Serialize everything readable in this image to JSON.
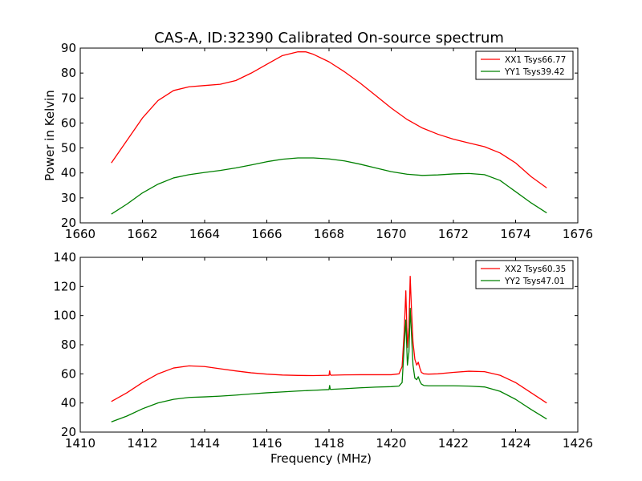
{
  "figure_title": "CAS-A, ID:32390 Calibrated On-source spectrum",
  "colors": {
    "xx": "#ff0000",
    "yy": "#008000"
  },
  "chart_data": [
    {
      "type": "line",
      "title": "CAS-A, ID:32390 Calibrated On-source spectrum",
      "xlabel": "",
      "ylabel": "Power in Kelvin",
      "xlim": [
        1660,
        1676
      ],
      "ylim": [
        20,
        90
      ],
      "xticks": [
        1660,
        1662,
        1664,
        1666,
        1668,
        1670,
        1672,
        1674,
        1676
      ],
      "yticks": [
        20,
        30,
        40,
        50,
        60,
        70,
        80,
        90
      ],
      "grid": false,
      "legend": "top-right",
      "series": [
        {
          "name": "XX1 Tsys66.77",
          "color": "#ff0000",
          "x": [
            1661.0,
            1661.5,
            1662.0,
            1662.5,
            1663.0,
            1663.5,
            1664.0,
            1664.5,
            1665.0,
            1665.5,
            1666.0,
            1666.5,
            1667.0,
            1667.25,
            1667.5,
            1668.0,
            1668.5,
            1669.0,
            1669.5,
            1670.0,
            1670.5,
            1671.0,
            1671.5,
            1672.0,
            1672.5,
            1673.0,
            1673.5,
            1674.0,
            1674.5,
            1675.0
          ],
          "y": [
            44,
            53,
            62,
            69,
            73,
            74.5,
            75,
            75.5,
            77,
            80,
            83.5,
            87,
            88.5,
            88.5,
            87.5,
            84.5,
            80.5,
            76,
            71,
            66,
            61.5,
            58,
            55.5,
            53.5,
            52,
            50.5,
            48,
            44,
            38.5,
            34
          ]
        },
        {
          "name": "YY1 Tsys39.42",
          "color": "#008000",
          "x": [
            1661.0,
            1661.5,
            1662.0,
            1662.5,
            1663.0,
            1663.5,
            1664.0,
            1664.5,
            1665.0,
            1665.5,
            1666.0,
            1666.5,
            1667.0,
            1667.5,
            1668.0,
            1668.5,
            1669.0,
            1669.5,
            1670.0,
            1670.5,
            1671.0,
            1671.5,
            1672.0,
            1672.5,
            1673.0,
            1673.5,
            1674.0,
            1674.5,
            1675.0
          ],
          "y": [
            23.5,
            27.5,
            32,
            35.5,
            38,
            39.3,
            40.2,
            41,
            42,
            43.2,
            44.5,
            45.5,
            46,
            46,
            45.6,
            44.8,
            43.5,
            42,
            40.5,
            39.5,
            39,
            39.2,
            39.6,
            39.8,
            39.3,
            37,
            32.5,
            28,
            24
          ]
        }
      ]
    },
    {
      "type": "line",
      "title": "",
      "xlabel": "Frequency (MHz)",
      "ylabel": "",
      "xlim": [
        1410,
        1426
      ],
      "ylim": [
        20,
        140
      ],
      "xticks": [
        1410,
        1412,
        1414,
        1416,
        1418,
        1420,
        1422,
        1424,
        1426
      ],
      "yticks": [
        20,
        40,
        60,
        80,
        100,
        120,
        140
      ],
      "grid": false,
      "legend": "top-right",
      "series": [
        {
          "name": "XX2 Tsys60.35",
          "color": "#ff0000",
          "x": [
            1411.0,
            1411.5,
            1412.0,
            1412.5,
            1413.0,
            1413.5,
            1414.0,
            1414.5,
            1415.0,
            1415.5,
            1416.0,
            1416.5,
            1417.0,
            1417.5,
            1418.0,
            1418.02,
            1418.04,
            1418.07,
            1418.1,
            1418.5,
            1419.0,
            1419.5,
            1420.0,
            1420.25,
            1420.35,
            1420.42,
            1420.47,
            1420.52,
            1420.57,
            1420.61,
            1420.65,
            1420.7,
            1420.76,
            1420.82,
            1420.87,
            1420.92,
            1420.97,
            1421.05,
            1421.2,
            1421.5,
            1422.0,
            1422.5,
            1423.0,
            1423.5,
            1424.0,
            1424.5,
            1425.0
          ],
          "y": [
            41,
            47,
            54,
            60,
            64,
            65.5,
            65,
            63.5,
            62,
            60.7,
            59.8,
            59.2,
            58.9,
            58.8,
            59,
            62,
            59.5,
            59,
            59.1,
            59.3,
            59.4,
            59.4,
            59.4,
            60,
            65,
            90,
            117,
            78,
            92,
            127,
            105,
            82,
            70,
            66,
            68,
            64,
            61,
            60,
            59.8,
            60,
            61,
            61.8,
            61.5,
            59,
            54,
            47,
            40
          ]
        },
        {
          "name": "YY2 Tsys47.01",
          "color": "#008000",
          "x": [
            1411.0,
            1411.5,
            1412.0,
            1412.5,
            1413.0,
            1413.5,
            1414.0,
            1414.5,
            1415.0,
            1415.5,
            1416.0,
            1416.5,
            1417.0,
            1417.5,
            1418.0,
            1418.02,
            1418.04,
            1418.07,
            1418.1,
            1418.5,
            1419.0,
            1419.5,
            1420.0,
            1420.25,
            1420.35,
            1420.42,
            1420.47,
            1420.52,
            1420.57,
            1420.61,
            1420.65,
            1420.7,
            1420.76,
            1420.82,
            1420.87,
            1420.92,
            1420.97,
            1421.05,
            1421.2,
            1421.5,
            1422.0,
            1422.5,
            1423.0,
            1423.5,
            1424.0,
            1424.5,
            1425.0
          ],
          "y": [
            27,
            31,
            36,
            40,
            42.5,
            43.8,
            44.2,
            44.7,
            45.4,
            46.2,
            47,
            47.6,
            48.2,
            48.7,
            49.2,
            52,
            49.4,
            49.3,
            49.4,
            49.8,
            50.4,
            50.9,
            51.2,
            51.6,
            54,
            80,
            97,
            66,
            75,
            105,
            88,
            66,
            57,
            56,
            58,
            55,
            53,
            52,
            51.8,
            51.8,
            51.8,
            51.6,
            51,
            48,
            42.5,
            35.5,
            29
          ]
        }
      ]
    }
  ]
}
